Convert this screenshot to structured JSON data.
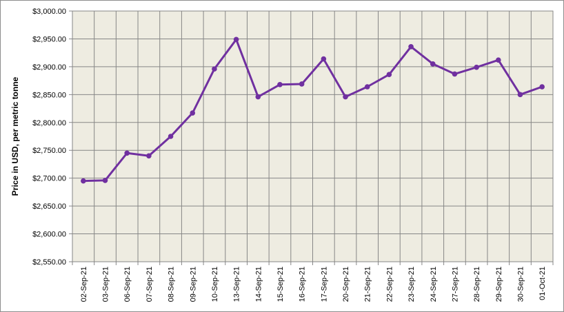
{
  "chart_data": {
    "type": "line",
    "title": "",
    "xlabel": "",
    "ylabel": "Price in USD, per metric tonne",
    "categories": [
      "02-Sep-21",
      "03-Sep-21",
      "06-Sep-21",
      "07-Sep-21",
      "08-Sep-21",
      "09-Sep-21",
      "10-Sep-21",
      "13-Sep-21",
      "14-Sep-21",
      "15-Sep-21",
      "16-Sep-21",
      "17-Sep-21",
      "20-Sep-21",
      "21-Sep-21",
      "22-Sep-21",
      "23-Sep-21",
      "24-Sep-21",
      "27-Sep-21",
      "28-Sep-21",
      "29-Sep-21",
      "30-Sep-21",
      "01-Oct-21"
    ],
    "series": [
      {
        "values": [
          2695,
          2696,
          2745,
          2740,
          2775,
          2817,
          2896,
          2949,
          2846,
          2868,
          2869,
          2914,
          2846,
          2864,
          2886,
          2936,
          2905,
          2887,
          2899,
          2912,
          2850,
          2864
        ],
        "color": "#7030a0"
      }
    ],
    "ylim": [
      2550,
      3000
    ],
    "ytick_step": 50,
    "ytick_labels": [
      "$2,550.00",
      "$2,600.00",
      "$2,650.00",
      "$2,700.00",
      "$2,750.00",
      "$2,800.00",
      "$2,850.00",
      "$2,900.00",
      "$2,950.00",
      "$3,000.00"
    ],
    "grid": true,
    "legend": "none",
    "plot_background": "#eeece1",
    "gridline_color": "#868686"
  }
}
